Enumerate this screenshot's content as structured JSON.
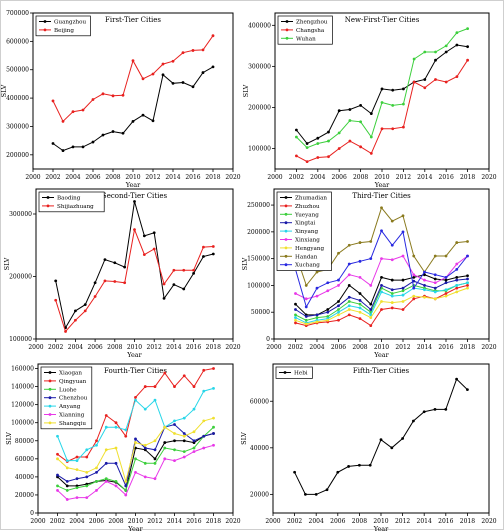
{
  "chart_data": [
    {
      "type": "line",
      "title": "First-Tier Cities",
      "xlabel": "Year",
      "ylabel": "SLV",
      "xlim": [
        2000,
        2020
      ],
      "ylim": [
        150000,
        700000
      ],
      "xticks": [
        "2000",
        "2002",
        "2004",
        "2006",
        "2008",
        "2010",
        "2012",
        "2014",
        "2016",
        "2018",
        "2020"
      ],
      "yticks": [
        "200000",
        "300000",
        "400000",
        "500000",
        "600000",
        "700000"
      ],
      "legend": "top-left",
      "x": [
        2002,
        2003,
        2004,
        2005,
        2006,
        2007,
        2008,
        2009,
        2010,
        2011,
        2012,
        2013,
        2014,
        2015,
        2016,
        2017,
        2018
      ],
      "series": [
        {
          "name": "Guangzhou",
          "color": "#000000",
          "values": [
            240000,
            215000,
            228000,
            228000,
            245000,
            270000,
            282000,
            276000,
            318000,
            340000,
            320000,
            482000,
            452000,
            455000,
            440000,
            490000,
            510000
          ]
        },
        {
          "name": "Beijing",
          "color": "#e8211f",
          "values": [
            390000,
            318000,
            352000,
            358000,
            395000,
            415000,
            408000,
            410000,
            532000,
            468000,
            485000,
            520000,
            530000,
            560000,
            568000,
            570000,
            620000
          ]
        }
      ]
    },
    {
      "type": "line",
      "title": "New-First-Tier Cities",
      "xlabel": "Year",
      "ylabel": "SLV",
      "xlim": [
        2000,
        2020
      ],
      "ylim": [
        50000,
        430000
      ],
      "xticks": [
        "2000",
        "2002",
        "2004",
        "2006",
        "2008",
        "2010",
        "2012",
        "2014",
        "2016",
        "2018",
        "2020"
      ],
      "yticks": [
        "100000",
        "200000",
        "300000",
        "400000"
      ],
      "legend": "top-left",
      "x": [
        2002,
        2003,
        2004,
        2005,
        2006,
        2007,
        2008,
        2009,
        2010,
        2011,
        2012,
        2013,
        2014,
        2015,
        2016,
        2017,
        2018
      ],
      "series": [
        {
          "name": "Zhengzhou",
          "color": "#000000",
          "values": [
            145000,
            112000,
            125000,
            140000,
            192000,
            195000,
            205000,
            185000,
            245000,
            242000,
            245000,
            262000,
            268000,
            315000,
            335000,
            352000,
            348000
          ]
        },
        {
          "name": "Changsha",
          "color": "#e8211f",
          "values": [
            82000,
            68000,
            78000,
            80000,
            100000,
            118000,
            104000,
            88000,
            148000,
            148000,
            152000,
            262000,
            248000,
            268000,
            262000,
            275000,
            315000
          ]
        },
        {
          "name": "Wuhan",
          "color": "#3ccf3c",
          "values": [
            128000,
            102000,
            112000,
            118000,
            138000,
            168000,
            165000,
            128000,
            212000,
            205000,
            208000,
            318000,
            335000,
            335000,
            350000,
            382000,
            392000
          ]
        }
      ]
    },
    {
      "type": "line",
      "title": "Second-Tier Cities",
      "xlabel": "Year",
      "ylabel": "SLV",
      "xlim": [
        2000,
        2020
      ],
      "ylim": [
        100000,
        340000
      ],
      "xticks": [
        "2000",
        "2002",
        "2004",
        "2006",
        "2008",
        "2010",
        "2012",
        "2014",
        "2016",
        "2018",
        "2020"
      ],
      "yticks": [
        "100000",
        "200000",
        "300000"
      ],
      "legend": "top-left",
      "x": [
        2002,
        2003,
        2004,
        2005,
        2006,
        2007,
        2008,
        2009,
        2010,
        2011,
        2012,
        2013,
        2014,
        2015,
        2016,
        2017,
        2018
      ],
      "series": [
        {
          "name": "Baoding",
          "color": "#000000",
          "values": [
            193000,
            118000,
            145000,
            155000,
            190000,
            227000,
            222000,
            215000,
            320000,
            265000,
            270000,
            165000,
            187000,
            180000,
            205000,
            232000,
            236000
          ]
        },
        {
          "name": "Shijiazhuang",
          "color": "#e8211f",
          "values": [
            162000,
            112000,
            130000,
            145000,
            168000,
            193000,
            192000,
            190000,
            275000,
            235000,
            244000,
            188000,
            210000,
            210000,
            210000,
            247000,
            248000
          ]
        }
      ]
    },
    {
      "type": "line",
      "title": "Third-Tier Cities",
      "xlabel": "Year",
      "ylabel": "SLV",
      "xlim": [
        2000,
        2020
      ],
      "ylim": [
        0,
        280000
      ],
      "xticks": [
        "2000",
        "2002",
        "2004",
        "2006",
        "2008",
        "2010",
        "2012",
        "2014",
        "2016",
        "2018",
        "2020"
      ],
      "yticks": [
        "0",
        "50000",
        "100000",
        "150000",
        "200000",
        "250000"
      ],
      "legend": "top-left",
      "x": [
        2002,
        2003,
        2004,
        2005,
        2006,
        2007,
        2008,
        2009,
        2010,
        2011,
        2012,
        2013,
        2014,
        2015,
        2016,
        2017,
        2018
      ],
      "series": [
        {
          "name": "Zhumadian",
          "color": "#000000",
          "values": [
            65000,
            45000,
            45000,
            55000,
            70000,
            100000,
            85000,
            65000,
            115000,
            110000,
            110000,
            115000,
            120000,
            112000,
            110000,
            115000,
            118000
          ]
        },
        {
          "name": "Zhuzhou",
          "color": "#e8211f",
          "values": [
            30000,
            25000,
            30000,
            32000,
            35000,
            45000,
            38000,
            25000,
            55000,
            58000,
            55000,
            75000,
            80000,
            75000,
            85000,
            95000,
            100000
          ]
        },
        {
          "name": "Yueyang",
          "color": "#3ccf3c",
          "values": [
            45000,
            35000,
            40000,
            42000,
            55000,
            70000,
            65000,
            50000,
            95000,
            85000,
            90000,
            100000,
            95000,
            90000,
            90000,
            100000,
            105000
          ]
        },
        {
          "name": "Xingtai",
          "color": "#1a1aa8",
          "values": [
            55000,
            42000,
            45000,
            50000,
            62000,
            78000,
            72000,
            55000,
            100000,
            92000,
            95000,
            108000,
            100000,
            95000,
            105000,
            110000,
            112000
          ]
        },
        {
          "name": "Xinyang",
          "color": "#28d6e8",
          "values": [
            40000,
            30000,
            35000,
            38000,
            50000,
            62000,
            58000,
            45000,
            88000,
            80000,
            82000,
            95000,
            92000,
            88000,
            92000,
            100000,
            105000
          ]
        },
        {
          "name": "Xinxiang",
          "color": "#e838e8",
          "values": [
            85000,
            75000,
            80000,
            90000,
            100000,
            120000,
            115000,
            100000,
            150000,
            148000,
            155000,
            120000,
            110000,
            105000,
            115000,
            140000,
            155000
          ]
        },
        {
          "name": "Hengyang",
          "color": "#f0e030",
          "values": [
            35000,
            28000,
            32000,
            35000,
            45000,
            55000,
            50000,
            40000,
            70000,
            68000,
            70000,
            80000,
            78000,
            75000,
            80000,
            88000,
            95000
          ]
        },
        {
          "name": "Handan",
          "color": "#8a7a1e",
          "values": [
            160000,
            100000,
            125000,
            130000,
            160000,
            175000,
            180000,
            182000,
            245000,
            220000,
            230000,
            155000,
            125000,
            155000,
            155000,
            180000,
            182000
          ]
        },
        {
          "name": "Xuchang",
          "color": "#2828e0",
          "values": [
            130000,
            60000,
            95000,
            105000,
            110000,
            140000,
            145000,
            150000,
            202000,
            175000,
            200000,
            95000,
            125000,
            120000,
            115000,
            130000,
            155000
          ]
        }
      ]
    },
    {
      "type": "line",
      "title": "Fourth-Tier Cities",
      "xlabel": "Year",
      "ylabel": "SLV",
      "xlim": [
        2000,
        2020
      ],
      "ylim": [
        0,
        165000
      ],
      "xticks": [
        "2000",
        "2002",
        "2004",
        "2006",
        "2008",
        "2010",
        "2012",
        "2014",
        "2016",
        "2018",
        "2020"
      ],
      "yticks": [
        "0",
        "20000",
        "40000",
        "60000",
        "80000",
        "100000",
        "120000",
        "140000",
        "160000"
      ],
      "legend": "top-left",
      "x": [
        2002,
        2003,
        2004,
        2005,
        2006,
        2007,
        2008,
        2009,
        2010,
        2011,
        2012,
        2013,
        2014,
        2015,
        2016,
        2017,
        2018
      ],
      "series": [
        {
          "name": "Xiaogan",
          "color": "#000000",
          "values": [
            40000,
            30000,
            30000,
            32000,
            35000,
            36000,
            34000,
            25000,
            72000,
            70000,
            60000,
            78000,
            80000,
            80000,
            78000,
            85000,
            88000
          ]
        },
        {
          "name": "Qingyuan",
          "color": "#e8211f",
          "values": [
            65000,
            57000,
            62000,
            62000,
            80000,
            108000,
            100000,
            85000,
            128000,
            140000,
            140000,
            155000,
            140000,
            152000,
            140000,
            158000,
            160000
          ]
        },
        {
          "name": "Luohe",
          "color": "#3ccf3c",
          "values": [
            30000,
            25000,
            28000,
            30000,
            35000,
            38000,
            35000,
            25000,
            60000,
            55000,
            55000,
            72000,
            70000,
            68000,
            72000,
            85000,
            95000
          ]
        },
        {
          "name": "Chenzhou",
          "color": "#1a1aa8",
          "values": [
            42000,
            35000,
            38000,
            40000,
            45000,
            55000,
            55000,
            30000,
            82000,
            72000,
            70000,
            95000,
            98000,
            88000,
            80000,
            85000,
            88000
          ]
        },
        {
          "name": "Anyang",
          "color": "#28d6e8",
          "values": [
            85000,
            58000,
            58000,
            70000,
            75000,
            95000,
            95000,
            92000,
            125000,
            115000,
            125000,
            95000,
            102000,
            105000,
            115000,
            135000,
            138000
          ]
        },
        {
          "name": "Xianning",
          "color": "#e838e8",
          "values": [
            25000,
            15000,
            17000,
            17000,
            25000,
            35000,
            30000,
            20000,
            45000,
            40000,
            38000,
            60000,
            58000,
            62000,
            68000,
            72000,
            75000
          ]
        },
        {
          "name": "Shangqiu",
          "color": "#f0e030",
          "values": [
            60000,
            50000,
            48000,
            45000,
            50000,
            70000,
            72000,
            35000,
            78000,
            75000,
            80000,
            95000,
            88000,
            85000,
            90000,
            102000,
            105000
          ]
        }
      ]
    },
    {
      "type": "line",
      "title": "Fifth-Tier Cities",
      "xlabel": "Year",
      "ylabel": "SLV",
      "xlim": [
        2000,
        2020
      ],
      "ylim": [
        12000,
        76000
      ],
      "xticks": [
        "2000",
        "2002",
        "2004",
        "2006",
        "2008",
        "2010",
        "2012",
        "2014",
        "2016",
        "2018",
        "2020"
      ],
      "yticks": [
        "20000",
        "40000",
        "60000"
      ],
      "legend": "top-left",
      "x": [
        2002,
        2003,
        2004,
        2005,
        2006,
        2007,
        2008,
        2009,
        2010,
        2011,
        2012,
        2013,
        2014,
        2015,
        2016,
        2017,
        2018
      ],
      "series": [
        {
          "name": "Hebi",
          "color": "#000000",
          "values": [
            29500,
            20000,
            20000,
            22000,
            29500,
            32000,
            32500,
            32500,
            43500,
            40000,
            44000,
            51500,
            55500,
            56500,
            56500,
            69500,
            65000
          ]
        }
      ]
    }
  ]
}
